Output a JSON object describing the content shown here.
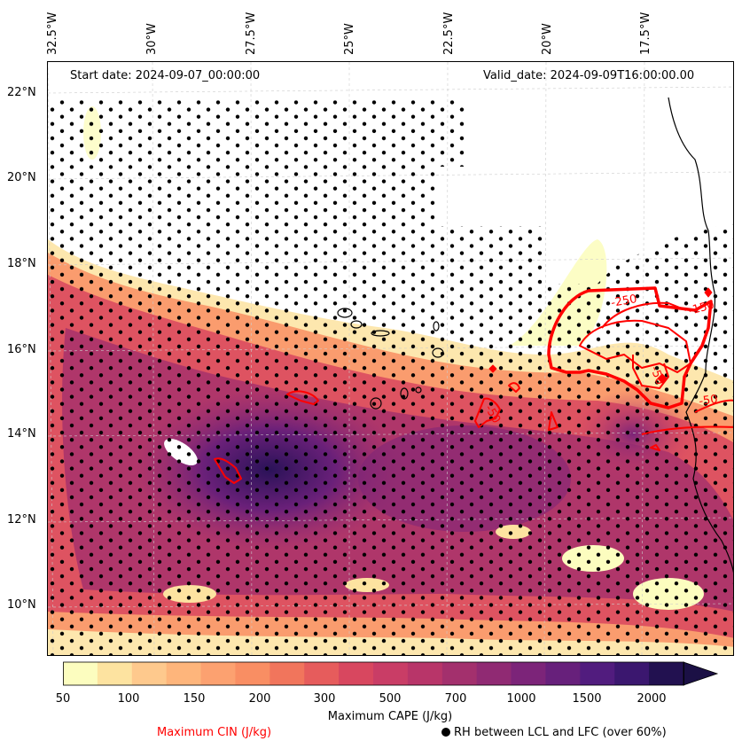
{
  "map": {
    "start_label": "Start date: 2024-09-07_00:00:00",
    "valid_label": "Valid_date: 2024-09-09T16:00:00.00",
    "longitude_labels": [
      "32.5°W",
      "30°W",
      "27.5°W",
      "25°W",
      "22.5°W",
      "20°W",
      "17.5°W"
    ],
    "latitude_labels": [
      "22°N",
      "20°N",
      "18°N",
      "16°N",
      "14°N",
      "12°N",
      "10°N"
    ],
    "cin_contour_labels": [
      "-250",
      "-150",
      "-50",
      "-50",
      "-50"
    ],
    "colors": {
      "cin_contour": "#ff0000",
      "rh_dot": "#000000",
      "coastline": "#000000"
    }
  },
  "colorbar": {
    "title": "Maximum CAPE (J/kg)",
    "tick_labels": [
      "50",
      "100",
      "150",
      "200",
      "300",
      "500",
      "700",
      "1000",
      "1500",
      "2000"
    ],
    "colors": [
      "#fcfdbf",
      "#fde3a0",
      "#fec98d",
      "#feb57b",
      "#fca170",
      "#f98e63",
      "#f1755c",
      "#e65c5c",
      "#d8475f",
      "#c93d66",
      "#b83569",
      "#a3306d",
      "#902a73",
      "#7c2479",
      "#67207b",
      "#511c7e",
      "#3b176f",
      "#221150",
      "#1b1045"
    ],
    "extend": "max"
  },
  "legend": {
    "cin_label": "Maximum CIN (J/kg)",
    "rh_label": "RH between LCL and LFC (over 60%)"
  }
}
